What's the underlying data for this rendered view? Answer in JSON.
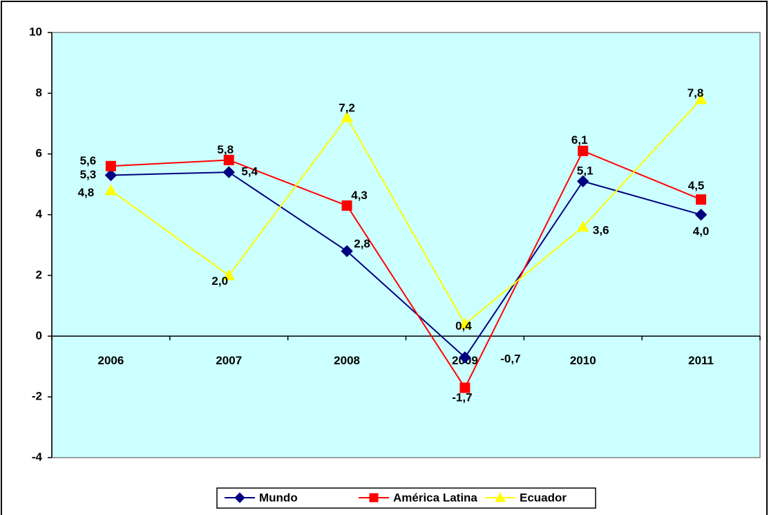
{
  "chart_data": {
    "type": "line",
    "categories": [
      "2006",
      "2007",
      "2008",
      "2009",
      "2010",
      "2011"
    ],
    "series": [
      {
        "name": "Mundo",
        "color": "#000080",
        "marker": "diamond",
        "values": [
          5.3,
          5.4,
          2.8,
          -0.7,
          5.1,
          4.0
        ],
        "value_labels": [
          "5,3",
          "5,4",
          "2,8",
          "-0,7",
          "5,1",
          "4,0"
        ]
      },
      {
        "name": "América Latina",
        "color": "#ff0000",
        "marker": "square",
        "values": [
          5.6,
          5.8,
          4.3,
          -1.7,
          6.1,
          4.5
        ],
        "value_labels": [
          "5,6",
          "5,8",
          "4,3",
          "-1,7",
          "6,1",
          "4,5"
        ]
      },
      {
        "name": "Ecuador",
        "color": "#ffff00",
        "marker": "triangle",
        "values": [
          4.8,
          2.0,
          7.2,
          0.4,
          3.6,
          7.8
        ],
        "value_labels": [
          "4,8",
          "2,0",
          "7,2",
          "0,4",
          "3,6",
          "7,8"
        ]
      }
    ],
    "ylim": [
      -4,
      10
    ],
    "yticks": [
      -4,
      -2,
      0,
      2,
      4,
      6,
      8,
      10
    ],
    "legend": "bottom",
    "plot_background": "#ccffff"
  }
}
